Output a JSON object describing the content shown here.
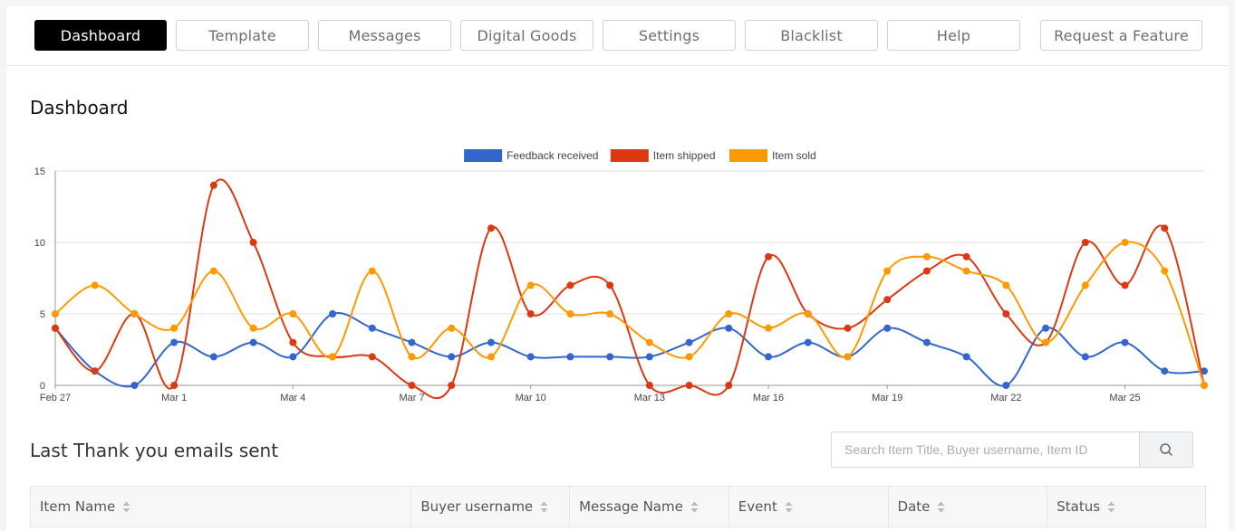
{
  "nav": {
    "items": [
      {
        "label": "Dashboard",
        "active": true
      },
      {
        "label": "Template",
        "active": false
      },
      {
        "label": "Messages",
        "active": false
      },
      {
        "label": "Digital Goods",
        "active": false
      },
      {
        "label": "Settings",
        "active": false
      },
      {
        "label": "Blacklist",
        "active": false
      },
      {
        "label": "Help",
        "active": false
      },
      {
        "label": "Request a Feature",
        "active": false
      }
    ]
  },
  "page": {
    "title": "Dashboard"
  },
  "chart_data": {
    "type": "line",
    "x": [
      "Feb 27",
      "Feb 28",
      "Feb 29",
      "Mar 1",
      "Mar 2",
      "Mar 3",
      "Mar 4",
      "Mar 5",
      "Mar 6",
      "Mar 7",
      "Mar 8",
      "Mar 9",
      "Mar 10",
      "Mar 11",
      "Mar 12",
      "Mar 13",
      "Mar 14",
      "Mar 15",
      "Mar 16",
      "Mar 17",
      "Mar 18",
      "Mar 19",
      "Mar 20",
      "Mar 21",
      "Mar 22",
      "Mar 23",
      "Mar 24",
      "Mar 25",
      "Mar 26",
      "Mar 27"
    ],
    "tick_labels": [
      "Feb 27",
      "Mar 1",
      "Mar 4",
      "Mar 7",
      "Mar 10",
      "Mar 13",
      "Mar 16",
      "Mar 19",
      "Mar 22",
      "Mar 25"
    ],
    "ylim": [
      0,
      15
    ],
    "y_ticks": [
      0,
      5,
      10,
      15
    ],
    "grid": true,
    "legend_position": "top",
    "series": [
      {
        "name": "Feedback received",
        "color": "#3366cc",
        "values": [
          4,
          1,
          0,
          3,
          2,
          3,
          2,
          5,
          4,
          3,
          2,
          3,
          2,
          2,
          2,
          2,
          3,
          4,
          2,
          3,
          2,
          4,
          3,
          2,
          0,
          4,
          2,
          3,
          1,
          1
        ]
      },
      {
        "name": "Item shipped",
        "color": "#dc3912",
        "values": [
          4,
          1,
          5,
          0,
          14,
          10,
          3,
          2,
          2,
          0,
          0,
          11,
          5,
          7,
          7,
          0,
          0,
          0,
          9,
          5,
          4,
          6,
          8,
          9,
          5,
          3,
          10,
          7,
          11,
          0
        ]
      },
      {
        "name": "Item sold",
        "color": "#ff9900",
        "values": [
          5,
          7,
          5,
          4,
          8,
          4,
          5,
          2,
          8,
          2,
          4,
          2,
          7,
          5,
          5,
          3,
          2,
          5,
          4,
          5,
          2,
          8,
          9,
          8,
          7,
          3,
          7,
          10,
          8,
          0
        ]
      }
    ]
  },
  "recent": {
    "title": "Last Thank you emails sent"
  },
  "search": {
    "placeholder": "Search Item Title, Buyer username, Item ID"
  },
  "table": {
    "columns": [
      "Item Name",
      "Buyer username",
      "Message Name",
      "Event",
      "Date",
      "Status"
    ]
  }
}
